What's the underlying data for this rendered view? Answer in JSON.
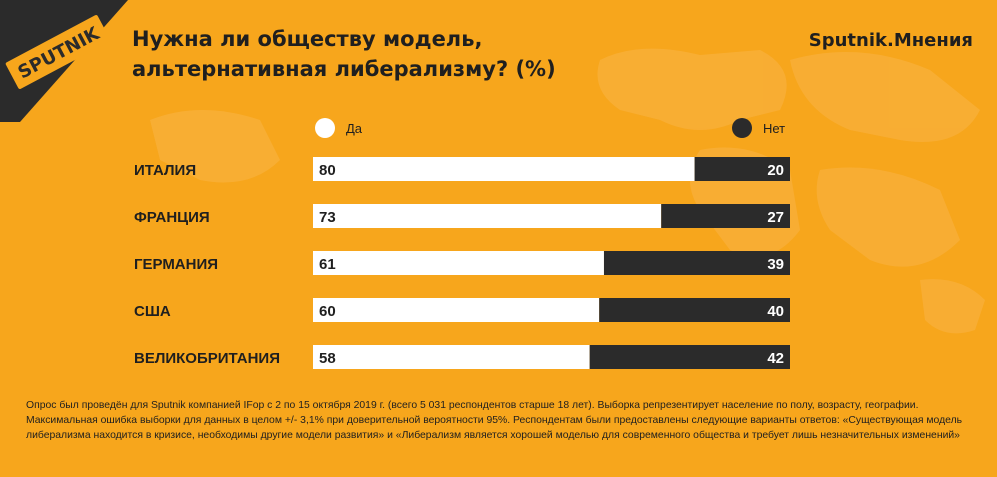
{
  "logo_text": "SPUTNIK",
  "brand": "Sputnik.Мнения",
  "title_line1": "Нужна ли обществу модель,",
  "title_line2": "альтернативная либерализму? (%)",
  "colors": {
    "background": "#F7A61C",
    "yes": "#FFFFFF",
    "no": "#2B2B2B",
    "text": "#1F1F1F"
  },
  "chart_data": {
    "type": "bar",
    "orientation": "horizontal",
    "stacked": true,
    "categories": [
      "ИТАЛИЯ",
      "ФРАНЦИЯ",
      "ГЕРМАНИЯ",
      "США",
      "ВЕЛИКОБРИТАНИЯ"
    ],
    "series": [
      {
        "name": "Да",
        "values": [
          80,
          73,
          61,
          60,
          58
        ]
      },
      {
        "name": "Нет",
        "values": [
          20,
          27,
          39,
          40,
          42
        ]
      }
    ],
    "xlim": [
      0,
      100
    ],
    "legend_placement": "top"
  },
  "footnote": "Опрос был проведён для Sputnik компанией IFop с 2 по 15 октября 2019 г. (всего 5 031 респондентов старше 18 лет). Выборка репрезентирует население по полу, возрасту, географии. Максимальная ошибка выборки для данных в целом +/- 3,1% при доверительной вероятности 95%. Респондентам были предоставлены следующие варианты ответов: «Существующая модель либерализма находится в кризисе, необходимы другие модели развития» и «Либерализм является хорошей моделью для современного общества  и требует лишь незначительных изменений»"
}
